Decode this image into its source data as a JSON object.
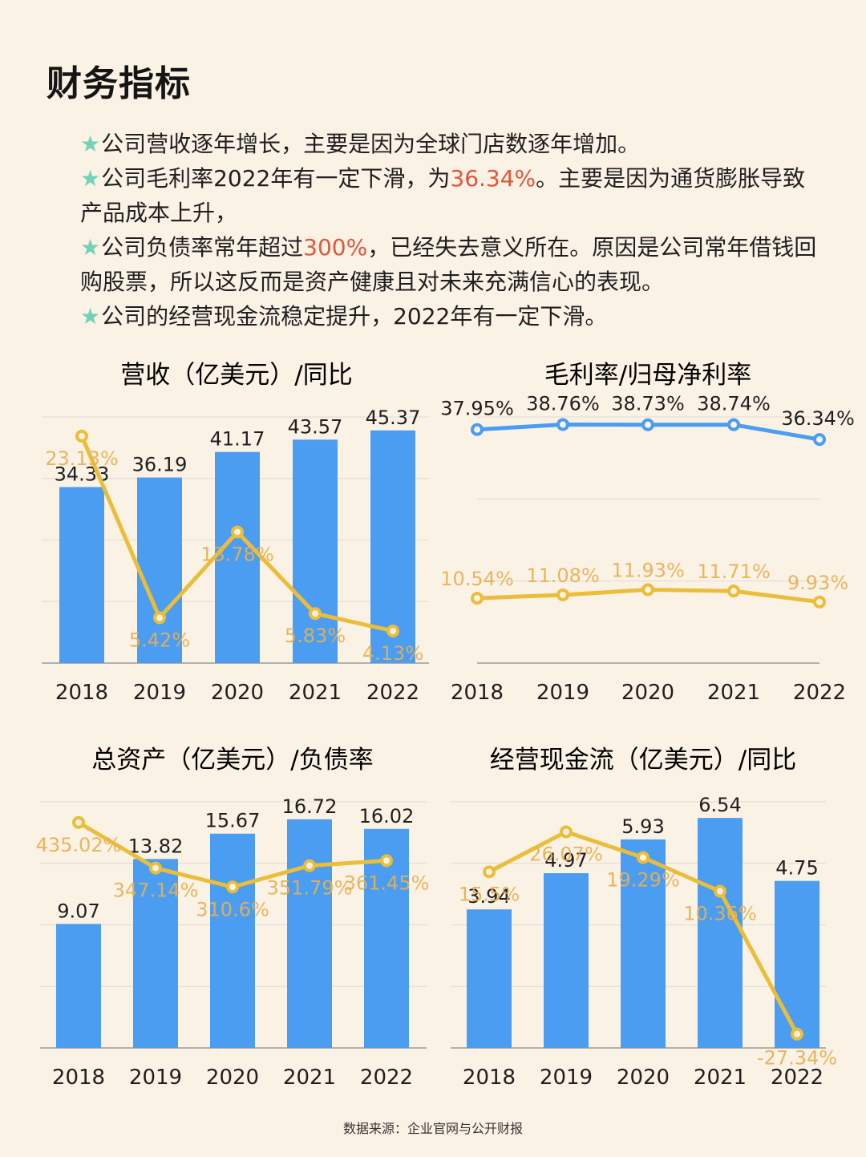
{
  "page": {
    "title": "财务指标",
    "bullets": [
      {
        "star": "★",
        "segments": [
          {
            "text": "公司营收逐年增长，主要是因为全球门店数逐年增加。"
          }
        ]
      },
      {
        "star": "★",
        "segments": [
          {
            "text": "公司毛利率2022年有一定下滑，为"
          },
          {
            "text": "36.34%",
            "highlight": true
          },
          {
            "text": "。主要是因为通货膨胀导致产品成本上升，"
          }
        ]
      },
      {
        "star": "★",
        "segments": [
          {
            "text": "公司负债率常年超过"
          },
          {
            "text": "300%",
            "highlight": true
          },
          {
            "text": "，已经失去意义所在。原因是公司常年借钱回购股票，所以这反而是资产健康且对未来充满信心的表现。"
          }
        ]
      },
      {
        "star": "★",
        "segments": [
          {
            "text": "公司的经营现金流稳定提升，2022年有一定下滑。"
          }
        ]
      }
    ],
    "source": "数据来源：企业官网与公开财报",
    "colors": {
      "bar": "#4a9df0",
      "line": "#ecbd38",
      "highlight": "#e0563a",
      "star": "#6fd3b7",
      "label": "#e8b052"
    }
  },
  "chart_data": [
    {
      "id": "revenue",
      "type": "bar+line",
      "title": "营收（亿美元）/同比",
      "categories": [
        "2018",
        "2019",
        "2020",
        "2021",
        "2022"
      ],
      "bars": {
        "name": "营收（亿美元）",
        "values": [
          34.33,
          36.19,
          41.17,
          43.57,
          45.37
        ],
        "labels": [
          "34.33",
          "36.19",
          "41.17",
          "43.57",
          "45.37"
        ],
        "ylim": [
          0,
          48
        ]
      },
      "line": {
        "name": "同比",
        "values": [
          23.13,
          5.42,
          13.78,
          5.83,
          4.13
        ],
        "labels": [
          "23.13%",
          "5.42%",
          "13.78%",
          "5.83%",
          "4.13%"
        ],
        "ylim": [
          1,
          25
        ]
      }
    },
    {
      "id": "margins",
      "type": "line",
      "title": "毛利率/归母净利率",
      "categories": [
        "2018",
        "2019",
        "2020",
        "2021",
        "2022"
      ],
      "ylim": [
        0,
        40
      ],
      "series": [
        {
          "name": "毛利率",
          "color": "#4a9df0",
          "values": [
            37.95,
            38.76,
            38.73,
            38.74,
            36.34
          ],
          "labels": [
            "37.95%",
            "38.76%",
            "38.73%",
            "38.74%",
            "36.34%"
          ]
        },
        {
          "name": "归母净利率",
          "color": "#ecbd38",
          "values": [
            10.54,
            11.08,
            11.93,
            11.71,
            9.93
          ],
          "labels": [
            "10.54%",
            "11.08%",
            "11.93%",
            "11.71%",
            "9.93%"
          ]
        }
      ]
    },
    {
      "id": "assets",
      "type": "bar+line",
      "title": "总资产（亿美元）/负债率",
      "categories": [
        "2018",
        "2019",
        "2020",
        "2021",
        "2022"
      ],
      "bars": {
        "name": "总资产（亿美元）",
        "values": [
          9.07,
          13.82,
          15.67,
          16.72,
          16.02
        ],
        "labels": [
          "9.07",
          "13.82",
          "15.67",
          "16.72",
          "16.02"
        ],
        "ylim": [
          0,
          18
        ]
      },
      "line": {
        "name": "负债率",
        "values": [
          435.02,
          347.14,
          310.6,
          351.79,
          361.45
        ],
        "labels": [
          "435.02%",
          "347.14%",
          "310.6%",
          "351.79%",
          "361.45%"
        ],
        "ylim": [
          0,
          475
        ]
      }
    },
    {
      "id": "cashflow",
      "type": "bar+line",
      "title": "经营现金流（亿美元）/同比",
      "categories": [
        "2018",
        "2019",
        "2020",
        "2021",
        "2022"
      ],
      "bars": {
        "name": "经营现金流（亿美元）",
        "values": [
          3.94,
          4.97,
          5.93,
          6.54,
          4.75
        ],
        "labels": [
          "3.94",
          "4.97",
          "5.93",
          "6.54",
          "4.75"
        ],
        "ylim": [
          0,
          7
        ]
      },
      "line": {
        "name": "同比",
        "values": [
          15.5,
          26.07,
          19.29,
          10.36,
          -27.34
        ],
        "labels": [
          "15.5%",
          "26.07%",
          "19.29%",
          "10.36%",
          "-27.34%"
        ],
        "ylim": [
          -31,
          34
        ]
      }
    }
  ]
}
